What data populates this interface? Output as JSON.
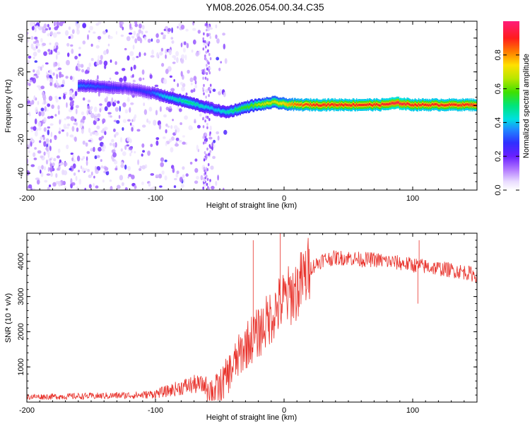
{
  "title": "YM08.2026.054.00.34.C35",
  "colors": {
    "snr_line": "#e8322b",
    "frame": "#000000",
    "background": "#ffffff"
  },
  "chart_data": [
    {
      "type": "heatmap",
      "title": "YM08.2026.054.00.34.C35",
      "xlabel": "Height of straight line (km)",
      "ylabel": "Frequency (Hz)",
      "xlim": [
        -200,
        150
      ],
      "ylim": [
        -50,
        50
      ],
      "xticks": [
        -200,
        -100,
        0,
        100
      ],
      "xtick_labels": [
        "-200",
        "-100",
        "0",
        "100"
      ],
      "yticks": [
        -40,
        -20,
        0,
        20,
        40
      ],
      "ytick_labels": [
        "-40",
        "-20",
        "0",
        "20",
        "40"
      ],
      "colorbar": {
        "label": "Normalized spectral amplitude",
        "range": [
          0.0,
          1.0
        ],
        "ticks": [
          0.0,
          0.2,
          0.4,
          0.6,
          0.8
        ],
        "tick_labels": [
          "0.0",
          "0.2",
          "0.4",
          "0.6",
          "0.8"
        ],
        "colormap": "rainbow (white-purple-blue-cyan-green-yellow-red-magenta)"
      },
      "ridge": {
        "description": "dominant frequency ridge vs height",
        "x": [
          -160,
          -140,
          -120,
          -105,
          -95,
          -85,
          -75,
          -65,
          -55,
          -45,
          -35,
          -25,
          -15,
          -8,
          0,
          10,
          25,
          50,
          75,
          88,
          100,
          125,
          150
        ],
        "y": [
          12,
          11,
          10,
          8,
          6,
          4,
          2,
          0,
          -2,
          -4,
          -2,
          0,
          1,
          2,
          1,
          0.5,
          0.5,
          0.5,
          0.5,
          1.5,
          0.5,
          0.5,
          0.5
        ],
        "amplitude": [
          0.35,
          0.3,
          0.25,
          0.3,
          0.4,
          0.45,
          0.5,
          0.45,
          0.4,
          0.45,
          0.55,
          0.6,
          0.7,
          0.7,
          0.75,
          0.85,
          0.9,
          0.9,
          0.9,
          0.95,
          0.9,
          0.9,
          0.9
        ]
      },
      "noise_region": {
        "x_range": [
          -200,
          -55
        ],
        "note": "scattered low-amplitude (0.0-0.3) energy across all frequencies"
      }
    },
    {
      "type": "line",
      "title": "",
      "xlabel": "Height of straight line (km)",
      "ylabel": "SNR (10 * v/v)",
      "xlim": [
        -200,
        150
      ],
      "ylim": [
        0,
        4800
      ],
      "xticks": [
        -200,
        -100,
        0,
        100
      ],
      "xtick_labels": [
        "-200",
        "-100",
        "0",
        "100"
      ],
      "yticks": [
        1000,
        2000,
        3000,
        4000
      ],
      "ytick_labels": [
        "1000",
        "2000",
        "3000",
        "4000"
      ],
      "series": [
        {
          "name": "SNR",
          "envelope_x": [
            -200,
            -150,
            -110,
            -100,
            -90,
            -80,
            -70,
            -60,
            -55,
            -50,
            -45,
            -40,
            -35,
            -30,
            -25,
            -20,
            -15,
            -10,
            -5,
            0,
            5,
            10,
            15,
            20,
            30,
            40,
            50,
            60,
            70,
            80,
            90,
            100,
            110,
            120,
            130,
            140,
            150
          ],
          "envelope_y": [
            150,
            170,
            200,
            240,
            320,
            420,
            500,
            480,
            250,
            400,
            700,
            1000,
            1300,
            1600,
            1800,
            1950,
            2200,
            2450,
            2700,
            2900,
            3050,
            3200,
            3500,
            3800,
            4050,
            4100,
            4100,
            4050,
            4050,
            4000,
            3950,
            3900,
            3850,
            3800,
            3750,
            3700,
            3600
          ],
          "spikes": [
            {
              "x": -24,
              "y": 4600
            },
            {
              "x": -3,
              "y": 4800
            },
            {
              "x": 105,
              "y": 4600
            },
            {
              "x": 104,
              "y": 2800
            }
          ]
        }
      ]
    }
  ]
}
